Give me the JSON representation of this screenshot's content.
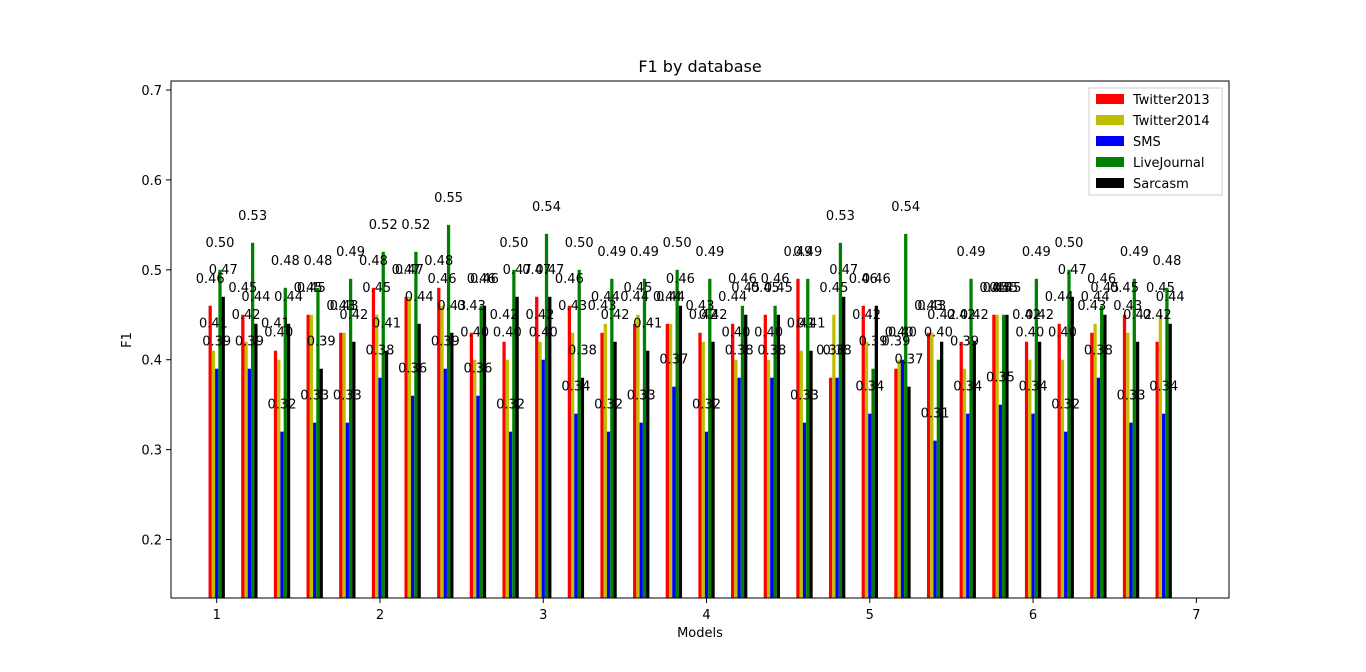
{
  "chart_data": {
    "type": "bar",
    "title": "F1 by database",
    "xlabel": "Models",
    "ylabel": "F1",
    "ylim": [
      0.135,
      0.71
    ],
    "xlim": [
      0.72,
      7.2
    ],
    "xticks": [
      "1",
      "2",
      "3",
      "4",
      "5",
      "6",
      "7"
    ],
    "yticks": [
      "0.2",
      "0.3",
      "0.4",
      "0.5",
      "0.6",
      "0.7"
    ],
    "ytick_values": [
      0.2,
      0.3,
      0.4,
      0.5,
      0.6,
      0.7
    ],
    "legend_position": "top-right",
    "grid": false,
    "groups": 30,
    "group_start": 1.0,
    "group_step": 0.2,
    "series": [
      {
        "name": "Twitter2013",
        "color": "#ff0000",
        "values": [
          0.46,
          0.45,
          0.41,
          0.45,
          0.43,
          0.48,
          0.47,
          0.48,
          0.43,
          0.42,
          0.47,
          0.46,
          0.43,
          0.44,
          0.44,
          0.43,
          0.44,
          0.45,
          0.49,
          0.38,
          0.46,
          0.39,
          0.43,
          0.42,
          0.45,
          0.42,
          0.44,
          0.43,
          0.45,
          0.42
        ],
        "labels": [
          "0.46",
          "0.45",
          "0.41",
          "0.45",
          "0.43",
          "0.48",
          "0.47",
          "0.48",
          "0.43",
          "0.42",
          "0.47",
          "0.46",
          "0.43",
          "0.44",
          "0.44",
          "0.43",
          "0.44",
          "0.45",
          "0.49",
          "0.38",
          "0.46",
          "0.39",
          "0.43",
          "0.42",
          "0.45",
          "0.42",
          "0.44",
          "0.43",
          "0.45",
          "0.42"
        ]
      },
      {
        "name": "Twitter2014",
        "color": "#bfbf00",
        "values": [
          0.41,
          0.42,
          0.4,
          0.45,
          0.43,
          0.45,
          0.47,
          0.46,
          0.4,
          0.4,
          0.42,
          0.43,
          0.44,
          0.45,
          0.44,
          0.42,
          0.4,
          0.4,
          0.41,
          0.45,
          0.42,
          0.4,
          0.43,
          0.39,
          0.45,
          0.4,
          0.4,
          0.44,
          0.43,
          0.45
        ],
        "labels": [
          "0.41",
          "0.42",
          "0.40",
          "0.45",
          "0.43",
          "0.45",
          "0.47",
          "0.46",
          "0.40",
          "0.40",
          "0.42",
          "0.43",
          "0.44",
          "0.45",
          "0.44",
          "0.42",
          "0.40",
          "0.40",
          "0.41",
          "0.45",
          "0.42",
          "0.40",
          "0.43",
          "0.39",
          "0.45",
          "0.40",
          "0.40",
          "0.44",
          "0.43",
          "0.45"
        ]
      },
      {
        "name": "SMS",
        "color": "#0000ff",
        "values": [
          0.39,
          0.39,
          0.32,
          0.33,
          0.33,
          0.38,
          0.36,
          0.39,
          0.36,
          0.32,
          0.4,
          0.34,
          0.32,
          0.33,
          0.37,
          0.32,
          0.38,
          0.38,
          0.33,
          0.38,
          0.34,
          0.4,
          0.31,
          0.34,
          0.35,
          0.34,
          0.32,
          0.38,
          0.33,
          0.34
        ],
        "labels": [
          "0.39",
          "0.39",
          "0.32",
          "0.33",
          "0.33",
          "0.38",
          "0.36",
          "0.39",
          "0.36",
          "0.32",
          "0.40",
          "0.34",
          "0.32",
          "0.33",
          "0.37",
          "0.32",
          "0.38",
          "0.38",
          "0.33",
          "0.38",
          "0.34",
          "0.40",
          "0.31",
          "0.34",
          "0.35",
          "0.34",
          "0.32",
          "0.38",
          "0.33",
          "0.34"
        ]
      },
      {
        "name": "LiveJournal",
        "color": "#008000",
        "values": [
          0.5,
          0.53,
          0.48,
          0.48,
          0.49,
          0.52,
          0.52,
          0.55,
          0.46,
          0.5,
          0.54,
          0.5,
          0.49,
          0.49,
          0.5,
          0.49,
          0.46,
          0.46,
          0.49,
          0.53,
          0.39,
          0.54,
          0.4,
          0.49,
          0.45,
          0.49,
          0.5,
          0.46,
          0.49,
          0.48
        ],
        "labels": [
          "0.50",
          "0.53",
          "0.48",
          "0.48",
          "0.49",
          "0.52",
          "0.52",
          "0.55",
          "0.46",
          "0.50",
          "0.54",
          "0.50",
          "0.49",
          "0.49",
          "0.50",
          "0.49",
          "0.46",
          "0.46",
          "0.49",
          "0.53",
          "0.39",
          "0.54",
          "0.40",
          "0.49",
          "0.45",
          "0.49",
          "0.50",
          "0.46",
          "0.49",
          "0.48"
        ]
      },
      {
        "name": "Sarcasm",
        "color": "#000000",
        "values": [
          0.47,
          0.44,
          0.44,
          0.39,
          0.42,
          0.41,
          0.44,
          0.43,
          0.46,
          0.47,
          0.47,
          0.38,
          0.42,
          0.41,
          0.46,
          0.42,
          0.45,
          0.45,
          0.41,
          0.47,
          0.46,
          0.37,
          0.42,
          0.42,
          0.45,
          0.42,
          0.47,
          0.45,
          0.42,
          0.44
        ],
        "labels": [
          "0.47",
          "0.44",
          "0.44",
          "0.39",
          "0.42",
          "0.41",
          "0.44",
          "0.43",
          "0.46",
          "0.47",
          "0.47",
          "0.38",
          "0.42",
          "0.41",
          "0.46",
          "0.42",
          "0.45",
          "0.45",
          "0.41",
          "0.47",
          "0.46",
          "0.37",
          "0.42",
          "0.42",
          "0.45",
          "0.42",
          "0.47",
          "0.45",
          "0.42",
          "0.44"
        ]
      }
    ]
  }
}
